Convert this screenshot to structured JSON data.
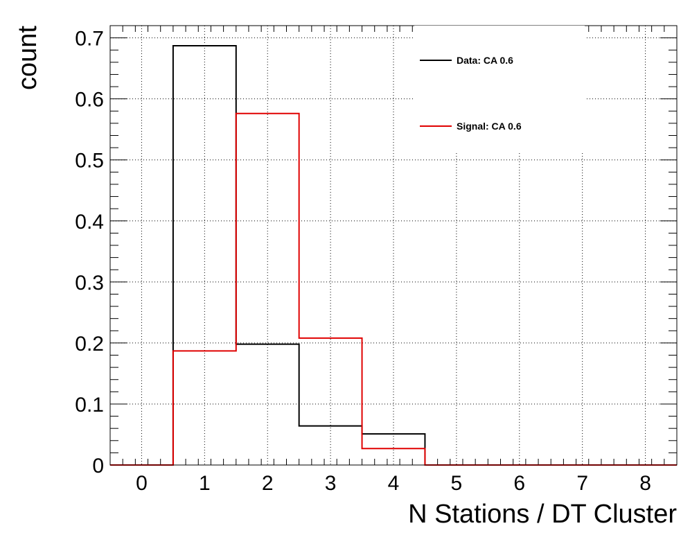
{
  "chart_data": {
    "type": "histogram",
    "xlabel": "N Stations / DT Cluster",
    "ylabel": "count",
    "xlim": [
      -0.5,
      8.5
    ],
    "ylim": [
      0,
      0.72
    ],
    "x_ticks": [
      "0",
      "1",
      "2",
      "3",
      "4",
      "5",
      "6",
      "7",
      "8"
    ],
    "y_ticks": [
      "0",
      "0.1",
      "0.2",
      "0.3",
      "0.4",
      "0.5",
      "0.6",
      "0.7"
    ],
    "bin_centers": [
      0,
      1,
      2,
      3,
      4,
      5,
      6,
      7,
      8
    ],
    "grid": true,
    "legend_position": "top-right",
    "series": [
      {
        "name": "Data: CA 0.6",
        "color": "#000000",
        "values": [
          0,
          0.687,
          0.198,
          0.064,
          0.051,
          0,
          0,
          0,
          0
        ]
      },
      {
        "name": "Signal: CA 0.6",
        "color": "#e00000",
        "values": [
          0,
          0.187,
          0.576,
          0.208,
          0.027,
          0,
          0,
          0,
          0
        ]
      }
    ]
  }
}
